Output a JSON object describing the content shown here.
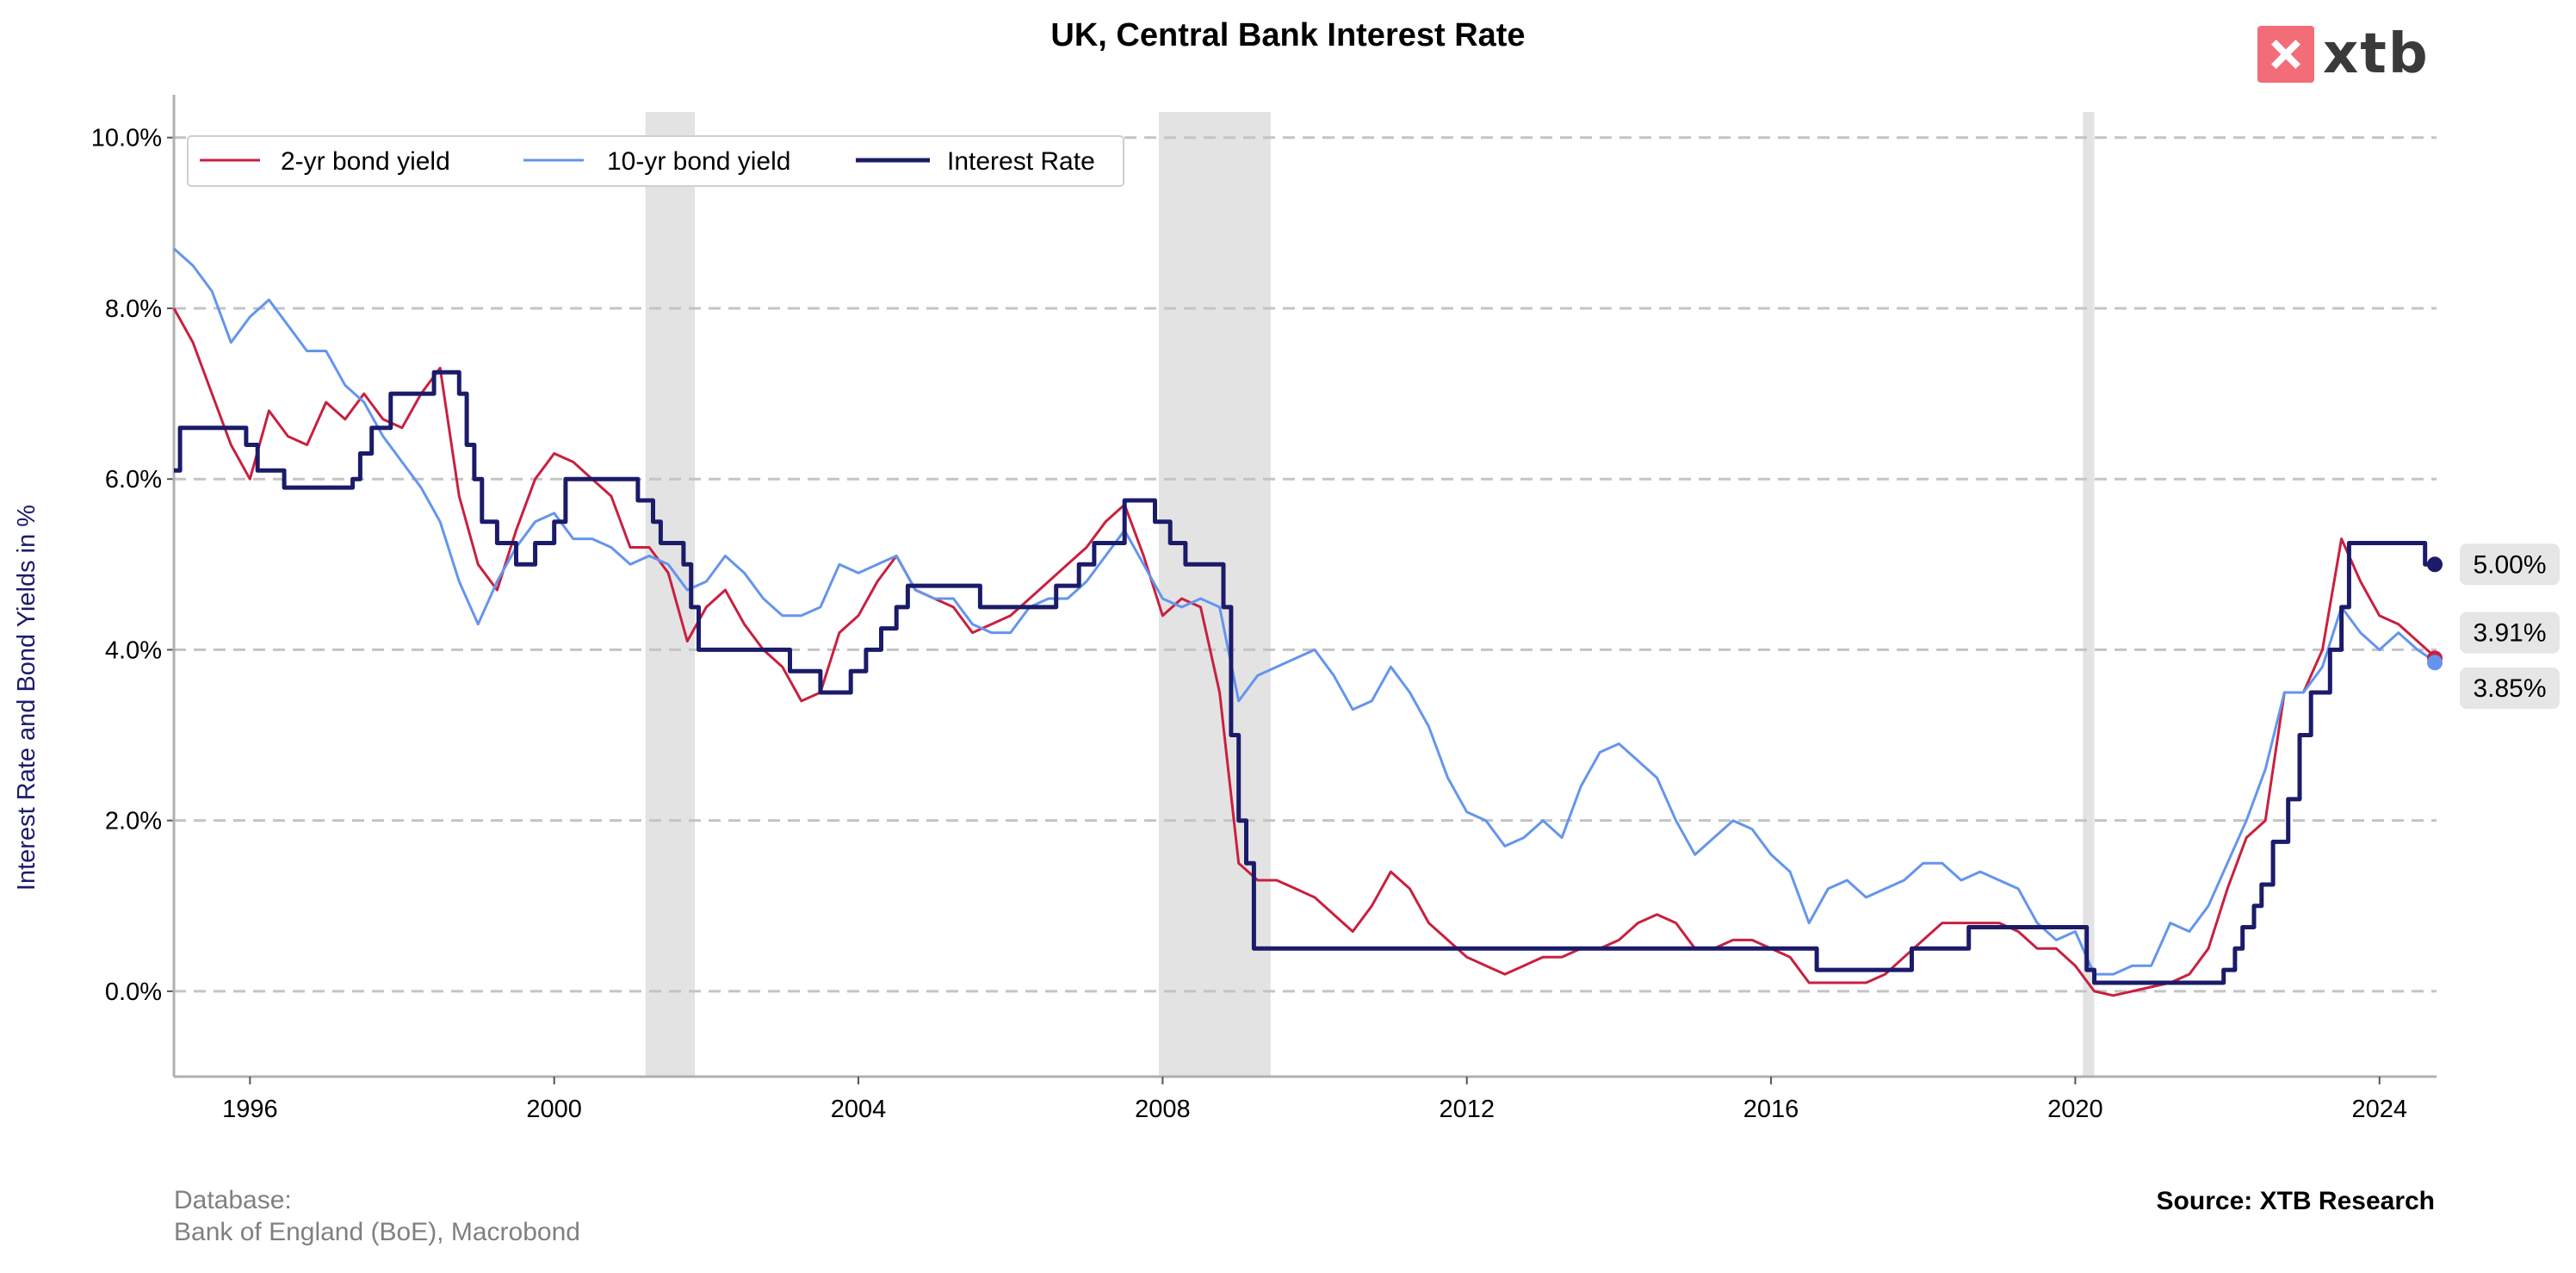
{
  "footer": {
    "database_label": "Database:",
    "database_value": "Bank of England (BoE), Macrobond",
    "source": "Source: XTB Research"
  },
  "logo": {
    "text": "xtb",
    "color": "#f26d77"
  },
  "chart_data": {
    "type": "line",
    "title": "UK, Central Bank Interest Rate",
    "xlabel": "",
    "ylabel": "Interest Rate and Bond Yields in %",
    "xlim": [
      1995.0,
      2024.75
    ],
    "ylim": [
      -1.0,
      10.3
    ],
    "x_ticks": [
      1996,
      2000,
      2004,
      2008,
      2012,
      2016,
      2020,
      2024
    ],
    "y_ticks": [
      0,
      2,
      4,
      6,
      8,
      10
    ],
    "y_tick_labels": [
      "0.0%",
      "2.0%",
      "4.0%",
      "6.0%",
      "8.0%",
      "10.0%"
    ],
    "grid": "horizontal dashed",
    "legend_position": "top-left",
    "recession_shading": [
      [
        2001.2,
        2001.85
      ],
      [
        2007.95,
        2009.42
      ],
      [
        2020.1,
        2020.25
      ]
    ],
    "series": [
      {
        "name": "2-yr bond yield",
        "color": "#c8203f",
        "x": [
          1995.0,
          1995.25,
          1995.5,
          1995.75,
          1996.0,
          1996.25,
          1996.5,
          1996.75,
          1997.0,
          1997.25,
          1997.5,
          1997.75,
          1998.0,
          1998.25,
          1998.5,
          1998.75,
          1999.0,
          1999.25,
          1999.5,
          1999.75,
          2000.0,
          2000.25,
          2000.5,
          2000.75,
          2001.0,
          2001.25,
          2001.5,
          2001.75,
          2002.0,
          2002.25,
          2002.5,
          2002.75,
          2003.0,
          2003.25,
          2003.5,
          2003.75,
          2004.0,
          2004.25,
          2004.5,
          2004.75,
          2005.0,
          2005.25,
          2005.5,
          2005.75,
          2006.0,
          2006.25,
          2006.5,
          2006.75,
          2007.0,
          2007.25,
          2007.5,
          2007.75,
          2008.0,
          2008.25,
          2008.5,
          2008.75,
          2009.0,
          2009.25,
          2009.5,
          2009.75,
          2010.0,
          2010.25,
          2010.5,
          2010.75,
          2011.0,
          2011.25,
          2011.5,
          2011.75,
          2012.0,
          2012.25,
          2012.5,
          2012.75,
          2013.0,
          2013.25,
          2013.5,
          2013.75,
          2014.0,
          2014.25,
          2014.5,
          2014.75,
          2015.0,
          2015.25,
          2015.5,
          2015.75,
          2016.0,
          2016.25,
          2016.5,
          2016.75,
          2017.0,
          2017.25,
          2017.5,
          2017.75,
          2018.0,
          2018.25,
          2018.5,
          2018.75,
          2019.0,
          2019.25,
          2019.5,
          2019.75,
          2020.0,
          2020.25,
          2020.5,
          2020.75,
          2021.0,
          2021.25,
          2021.5,
          2021.75,
          2022.0,
          2022.25,
          2022.5,
          2022.75,
          2023.0,
          2023.25,
          2023.5,
          2023.75,
          2024.0,
          2024.25,
          2024.5,
          2024.75
        ],
        "values": [
          8.0,
          7.6,
          7.0,
          6.4,
          6.0,
          6.8,
          6.5,
          6.4,
          6.9,
          6.7,
          7.0,
          6.7,
          6.6,
          7.0,
          7.3,
          5.8,
          5.0,
          4.7,
          5.4,
          6.0,
          6.3,
          6.2,
          6.0,
          5.8,
          5.2,
          5.2,
          4.9,
          4.1,
          4.5,
          4.7,
          4.3,
          4.0,
          3.8,
          3.4,
          3.5,
          4.2,
          4.4,
          4.8,
          5.1,
          4.7,
          4.6,
          4.5,
          4.2,
          4.3,
          4.4,
          4.6,
          4.8,
          5.0,
          5.2,
          5.5,
          5.7,
          5.1,
          4.4,
          4.6,
          4.5,
          3.5,
          1.5,
          1.3,
          1.3,
          1.2,
          1.1,
          0.9,
          0.7,
          1.0,
          1.4,
          1.2,
          0.8,
          0.6,
          0.4,
          0.3,
          0.2,
          0.3,
          0.4,
          0.4,
          0.5,
          0.5,
          0.6,
          0.8,
          0.9,
          0.8,
          0.5,
          0.5,
          0.6,
          0.6,
          0.5,
          0.4,
          0.1,
          0.1,
          0.1,
          0.1,
          0.2,
          0.4,
          0.6,
          0.8,
          0.8,
          0.8,
          0.8,
          0.7,
          0.5,
          0.5,
          0.3,
          0.0,
          -0.05,
          0.0,
          0.05,
          0.1,
          0.2,
          0.5,
          1.2,
          1.8,
          2.0,
          3.5,
          3.5,
          4.0,
          5.3,
          4.8,
          4.4,
          4.3,
          4.1,
          3.9
        ]
      },
      {
        "name": "10-yr bond yield",
        "color": "#6495ed",
        "x": [
          1995.0,
          1995.25,
          1995.5,
          1995.75,
          1996.0,
          1996.25,
          1996.5,
          1996.75,
          1997.0,
          1997.25,
          1997.5,
          1997.75,
          1998.0,
          1998.25,
          1998.5,
          1998.75,
          1999.0,
          1999.25,
          1999.5,
          1999.75,
          2000.0,
          2000.25,
          2000.5,
          2000.75,
          2001.0,
          2001.25,
          2001.5,
          2001.75,
          2002.0,
          2002.25,
          2002.5,
          2002.75,
          2003.0,
          2003.25,
          2003.5,
          2003.75,
          2004.0,
          2004.25,
          2004.5,
          2004.75,
          2005.0,
          2005.25,
          2005.5,
          2005.75,
          2006.0,
          2006.25,
          2006.5,
          2006.75,
          2007.0,
          2007.25,
          2007.5,
          2007.75,
          2008.0,
          2008.25,
          2008.5,
          2008.75,
          2009.0,
          2009.25,
          2009.5,
          2009.75,
          2010.0,
          2010.25,
          2010.5,
          2010.75,
          2011.0,
          2011.25,
          2011.5,
          2011.75,
          2012.0,
          2012.25,
          2012.5,
          2012.75,
          2013.0,
          2013.25,
          2013.5,
          2013.75,
          2014.0,
          2014.25,
          2014.5,
          2014.75,
          2015.0,
          2015.25,
          2015.5,
          2015.75,
          2016.0,
          2016.25,
          2016.5,
          2016.75,
          2017.0,
          2017.25,
          2017.5,
          2017.75,
          2018.0,
          2018.25,
          2018.5,
          2018.75,
          2019.0,
          2019.25,
          2019.5,
          2019.75,
          2020.0,
          2020.25,
          2020.5,
          2020.75,
          2021.0,
          2021.25,
          2021.5,
          2021.75,
          2022.0,
          2022.25,
          2022.5,
          2022.75,
          2023.0,
          2023.25,
          2023.5,
          2023.75,
          2024.0,
          2024.25,
          2024.5,
          2024.75
        ],
        "values": [
          8.7,
          8.5,
          8.2,
          7.6,
          7.9,
          8.1,
          7.8,
          7.5,
          7.5,
          7.1,
          6.9,
          6.5,
          6.2,
          5.9,
          5.5,
          4.8,
          4.3,
          4.8,
          5.2,
          5.5,
          5.6,
          5.3,
          5.3,
          5.2,
          5.0,
          5.1,
          5.0,
          4.7,
          4.8,
          5.1,
          4.9,
          4.6,
          4.4,
          4.4,
          4.5,
          5.0,
          4.9,
          5.0,
          5.1,
          4.7,
          4.6,
          4.6,
          4.3,
          4.2,
          4.2,
          4.5,
          4.6,
          4.6,
          4.8,
          5.1,
          5.4,
          5.0,
          4.6,
          4.5,
          4.6,
          4.5,
          3.4,
          3.7,
          3.8,
          3.9,
          4.0,
          3.7,
          3.3,
          3.4,
          3.8,
          3.5,
          3.1,
          2.5,
          2.1,
          2.0,
          1.7,
          1.8,
          2.0,
          1.8,
          2.4,
          2.8,
          2.9,
          2.7,
          2.5,
          2.0,
          1.6,
          1.8,
          2.0,
          1.9,
          1.6,
          1.4,
          0.8,
          1.2,
          1.3,
          1.1,
          1.2,
          1.3,
          1.5,
          1.5,
          1.3,
          1.4,
          1.3,
          1.2,
          0.8,
          0.6,
          0.7,
          0.2,
          0.2,
          0.3,
          0.3,
          0.8,
          0.7,
          1.0,
          1.5,
          2.0,
          2.6,
          3.5,
          3.5,
          3.8,
          4.5,
          4.2,
          4.0,
          4.2,
          4.0,
          3.85
        ]
      },
      {
        "name": "Interest Rate",
        "color": "#1b1b6a",
        "step": true,
        "x": [
          1995.0,
          1995.08,
          1995.95,
          1996.1,
          1996.45,
          1996.85,
          1997.35,
          1997.45,
          1997.6,
          1997.85,
          1998.42,
          1998.75,
          1998.85,
          1998.95,
          1999.05,
          1999.25,
          1999.5,
          1999.75,
          2000.0,
          2000.15,
          2001.1,
          2001.3,
          2001.4,
          2001.7,
          2001.8,
          2001.9,
          2003.1,
          2003.5,
          2003.9,
          2004.1,
          2004.3,
          2004.5,
          2004.65,
          2005.6,
          2006.6,
          2006.9,
          2007.1,
          2007.5,
          2007.9,
          2008.1,
          2008.3,
          2008.8,
          2008.9,
          2009.0,
          2009.1,
          2009.2,
          2016.6,
          2017.85,
          2018.6,
          2020.15,
          2020.25,
          2021.95,
          2022.1,
          2022.2,
          2022.35,
          2022.45,
          2022.6,
          2022.8,
          2022.95,
          2023.1,
          2023.35,
          2023.5,
          2023.6,
          2024.6
        ],
        "values": [
          6.1,
          6.6,
          6.4,
          6.1,
          5.9,
          5.9,
          6.0,
          6.3,
          6.6,
          7.0,
          7.25,
          7.0,
          6.4,
          6.0,
          5.5,
          5.25,
          5.0,
          5.25,
          5.5,
          6.0,
          5.75,
          5.5,
          5.25,
          5.0,
          4.5,
          4.0,
          3.75,
          3.5,
          3.75,
          4.0,
          4.25,
          4.5,
          4.75,
          4.5,
          4.75,
          5.0,
          5.25,
          5.75,
          5.5,
          5.25,
          5.0,
          4.5,
          3.0,
          2.0,
          1.5,
          0.5,
          0.25,
          0.5,
          0.75,
          0.25,
          0.1,
          0.25,
          0.5,
          0.75,
          1.0,
          1.25,
          1.75,
          2.25,
          3.0,
          3.5,
          4.0,
          4.5,
          5.25,
          5.0
        ]
      }
    ],
    "end_value_labels": [
      "5.00%",
      "3.91%",
      "3.85%"
    ]
  }
}
